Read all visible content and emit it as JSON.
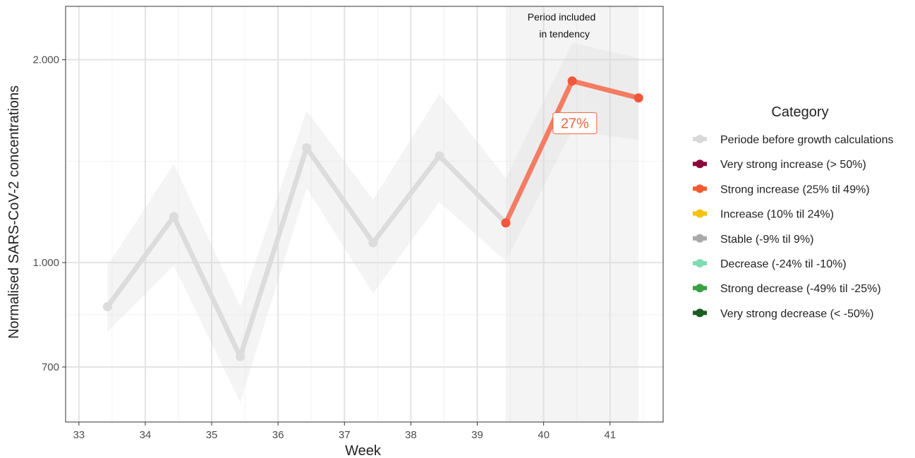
{
  "chart_data": {
    "type": "line",
    "xlabel": "Week",
    "ylabel": "Normalised SARS-CoV-2 concentrations",
    "y_scale": "log",
    "xlim": [
      32.8,
      41.8
    ],
    "ylim": [
      580,
      2400
    ],
    "x_ticks": [
      33,
      34,
      35,
      36,
      37,
      38,
      39,
      40,
      41
    ],
    "x_tick_labels": [
      "33",
      "34",
      "35",
      "36",
      "37",
      "38",
      "39",
      "40",
      "41"
    ],
    "y_ticks": [
      700,
      1000,
      2000
    ],
    "y_tick_labels": [
      "700",
      "1.000",
      "2.000"
    ],
    "grid": true,
    "series": [
      {
        "category": "Periode before growth calculations",
        "color": "#dcdcdc",
        "x": [
          33.43,
          34.43,
          35.43,
          36.43,
          37.43,
          38.43,
          39.43
        ],
        "values": [
          860,
          1170,
          725,
          1480,
          1070,
          1440,
          1145
        ],
        "ribbon_lower": [
          790,
          990,
          620,
          1290,
          900,
          1230,
          1005
        ],
        "ribbon_upper": [
          990,
          1400,
          860,
          1680,
          1240,
          1780,
          1335
        ]
      },
      {
        "category": "Strong increase (25% til 49%)",
        "color": "#f47c62",
        "x": [
          39.43,
          40.43,
          41.43
        ],
        "values": [
          1145,
          1860,
          1755
        ],
        "ribbon_lower": [
          1005,
          1570,
          1520
        ],
        "ribbon_upper": [
          1335,
          2120,
          2010
        ]
      }
    ],
    "highlight_period": {
      "x_range": [
        39.43,
        41.43
      ],
      "label_line1": "Period included",
      "label_line2": "in tendency"
    },
    "tendency_label": {
      "text": "27%",
      "x": 40.47,
      "y": 1610,
      "color": "#f0643c"
    },
    "legend": {
      "title": "Category",
      "position": "right",
      "entries": [
        {
          "label": "Periode before growth calculations",
          "color": "#d9d9d9"
        },
        {
          "label": "Very strong increase (> 50%)",
          "color": "#8b0a3c"
        },
        {
          "label": "Strong increase (25% til 49%)",
          "color": "#f25a32"
        },
        {
          "label": "Increase (10% til 24%)",
          "color": "#f5c20f"
        },
        {
          "label": "Stable (-9% til 9%)",
          "color": "#aaaaaa"
        },
        {
          "label": "Decrease (-24% til -10%)",
          "color": "#7fdcb0"
        },
        {
          "label": "Strong decrease (-49% til -25%)",
          "color": "#3aa046"
        },
        {
          "label": "Very strong decrease (< -50%)",
          "color": "#1b5e20"
        }
      ]
    }
  }
}
